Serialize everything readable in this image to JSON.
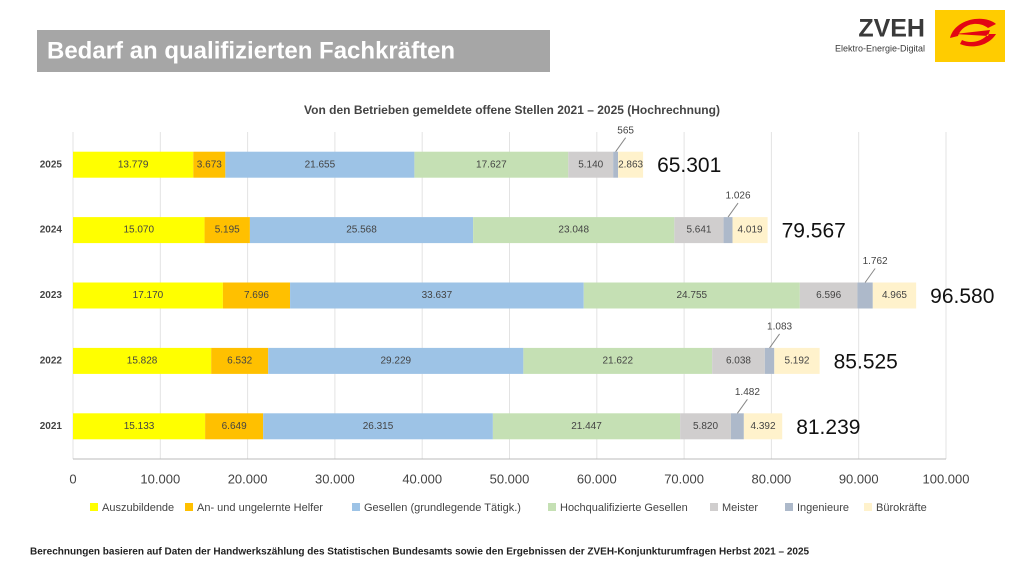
{
  "header": {
    "title": "Bedarf an qualifizierten Fachkräften",
    "logo": "ZVEH",
    "tagline": "Elektro-Energie-Digital"
  },
  "footer": "Berechnungen basieren auf Daten der Handwerkszählung des Statistischen Bundesamts sowie den Ergebnissen der ZVEH-Konjunkturumfragen Herbst 2021 – 2025",
  "chart_data": {
    "type": "stacked-bar-horizontal",
    "title": "Von den Betrieben gemeldete offene Stellen 2021 – 2025 (Hochrechnung)",
    "categories": [
      "2025",
      "2024",
      "2023",
      "2022",
      "2021"
    ],
    "series": [
      {
        "name": "Auszubildende",
        "color": "#ffff00",
        "values": [
          13779,
          15070,
          17170,
          15828,
          15133
        ],
        "value_labels": [
          "13.779",
          "15.070",
          "17.170",
          "15.828",
          "15.133"
        ]
      },
      {
        "name": "An- und ungelernte Helfer",
        "color": "#ffc000",
        "values": [
          3673,
          5195,
          7696,
          6532,
          6649
        ],
        "value_labels": [
          "3.673",
          "5.195",
          "7.696",
          "6.532",
          "6.649"
        ]
      },
      {
        "name": "Gesellen (grundlegende Tätigk.)",
        "color": "#9dc3e6",
        "values": [
          21655,
          25568,
          33637,
          29229,
          26315
        ],
        "value_labels": [
          "21.655",
          "25.568",
          "33.637",
          "29.229",
          "26.315"
        ]
      },
      {
        "name": "Hochqualifizierte Gesellen",
        "color": "#c5e0b4",
        "values": [
          17627,
          23048,
          24755,
          21622,
          21447
        ],
        "value_labels": [
          "17.627",
          "23.048",
          "24.755",
          "21.622",
          "21.447"
        ]
      },
      {
        "name": "Meister",
        "color": "#d0cece",
        "values": [
          5140,
          5641,
          6596,
          6038,
          5820
        ],
        "value_labels": [
          "5.140",
          "5.641",
          "6.596",
          "6.038",
          "5.820"
        ]
      },
      {
        "name": "Ingenieure",
        "color": "#adb9ca",
        "values": [
          565,
          1026,
          1762,
          1083,
          1482
        ],
        "value_labels": [
          "565",
          "1.026",
          "1.762",
          "1.083",
          "1.482"
        ]
      },
      {
        "name": "Bürokräfte",
        "color": "#fff2cc",
        "values": [
          2863,
          4019,
          4965,
          5192,
          4392
        ],
        "value_labels": [
          "2.863",
          "4.019",
          "4.965",
          "5.192",
          "4.392"
        ]
      }
    ],
    "totals": {
      "values": [
        65301,
        79567,
        96580,
        85525,
        81239
      ],
      "value_labels": [
        "65.301",
        "79.567",
        "96.580",
        "85.525",
        "81.239"
      ]
    },
    "xlim": [
      0,
      100000
    ],
    "xticks": [
      0,
      {
        "value": 10000,
        "label": "10.000"
      },
      {
        "value": 20000,
        "label": "20.000"
      },
      {
        "value": 30000,
        "label": "30.000"
      },
      {
        "value": 40000,
        "label": "40.000"
      },
      {
        "value": 50000,
        "label": "50.000"
      },
      {
        "value": 60000,
        "label": "60.000"
      },
      {
        "value": 70000,
        "label": "70.000"
      },
      {
        "value": 80000,
        "label": "80.000"
      },
      {
        "value": 90000,
        "label": "90.000"
      },
      {
        "value": 100000,
        "label": "100.000"
      }
    ],
    "grid": true,
    "legend": "bottom"
  }
}
